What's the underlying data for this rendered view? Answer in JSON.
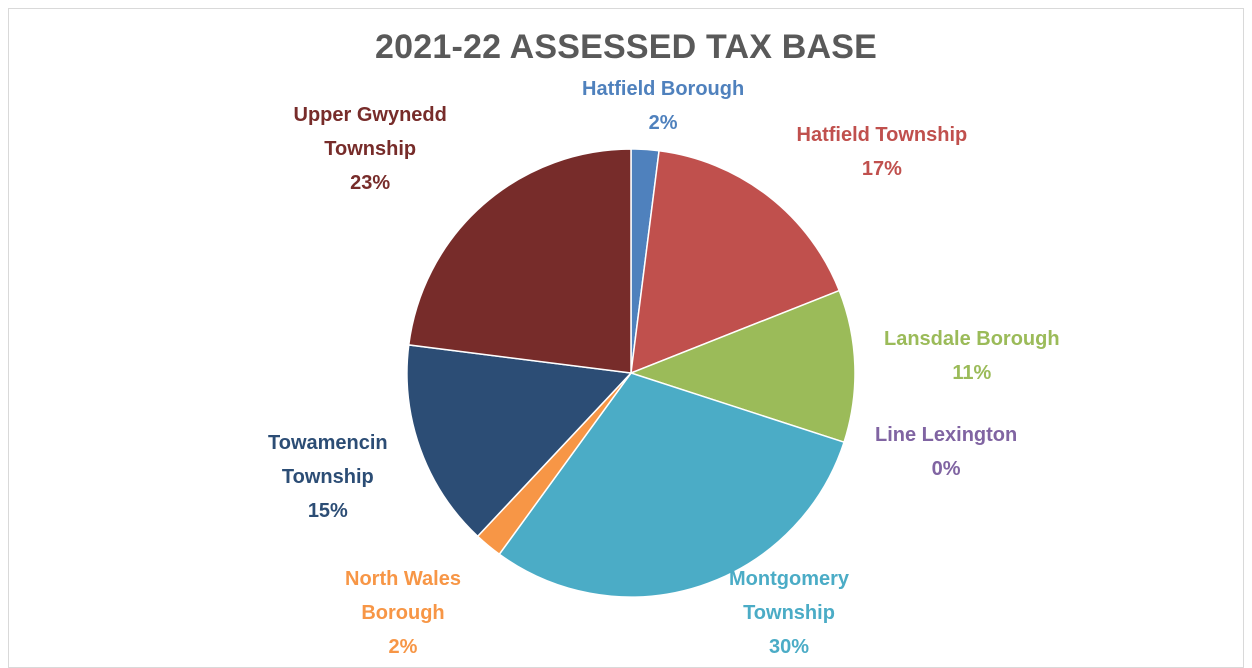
{
  "chart_data": {
    "type": "pie",
    "title": "2021-22 ASSESSED TAX BASE",
    "slices": [
      {
        "label_lines": [
          "Hatfield Borough"
        ],
        "value": 2,
        "value_label": "2%",
        "color": "#4f81bd"
      },
      {
        "label_lines": [
          "Hatfield Township"
        ],
        "value": 17,
        "value_label": "17%",
        "color": "#c0504d"
      },
      {
        "label_lines": [
          "Lansdale Borough"
        ],
        "value": 11,
        "value_label": "11%",
        "color": "#9bbb59"
      },
      {
        "label_lines": [
          "Line Lexington"
        ],
        "value": 0,
        "value_label": "0%",
        "color": "#8064a2"
      },
      {
        "label_lines": [
          "Montgomery",
          "Township"
        ],
        "value": 30,
        "value_label": "30%",
        "color": "#4bacc6"
      },
      {
        "label_lines": [
          "North Wales",
          "Borough"
        ],
        "value": 2,
        "value_label": "2%",
        "color": "#f79646"
      },
      {
        "label_lines": [
          "Towamencin",
          "Township"
        ],
        "value": 15,
        "value_label": "15%",
        "color": "#2c4d75"
      },
      {
        "label_lines": [
          "Upper Gwynedd",
          "Township"
        ],
        "value": 23,
        "value_label": "23%",
        "color": "#772c2a"
      }
    ],
    "legend": "none",
    "data_labels": "outside"
  }
}
